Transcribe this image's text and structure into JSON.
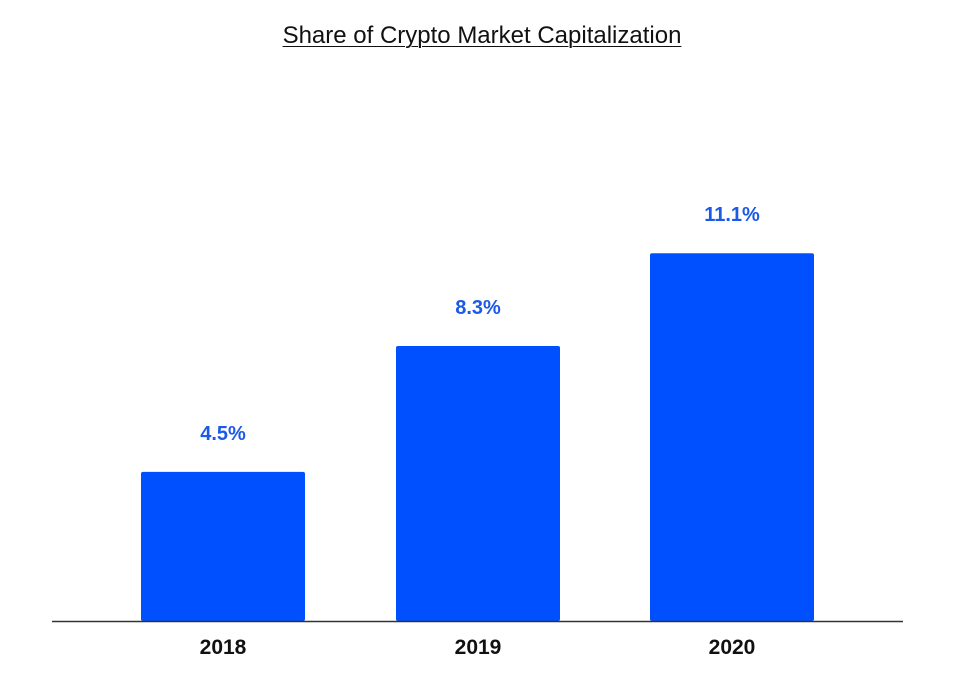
{
  "chart_data": {
    "type": "bar",
    "title": "Share of Crypto Market Capitalization",
    "categories": [
      "2018",
      "2019",
      "2020"
    ],
    "values": [
      4.5,
      8.3,
      11.1
    ],
    "data_labels": [
      "4.5%",
      "8.3%",
      "11.1%"
    ],
    "xlabel": "",
    "ylabel": "",
    "ylim": [
      0,
      16.9
    ],
    "grid": false,
    "legend": "none",
    "colors": {
      "bar": "#0050ff",
      "label": "#1a5ae6",
      "axis": "#333333"
    }
  }
}
